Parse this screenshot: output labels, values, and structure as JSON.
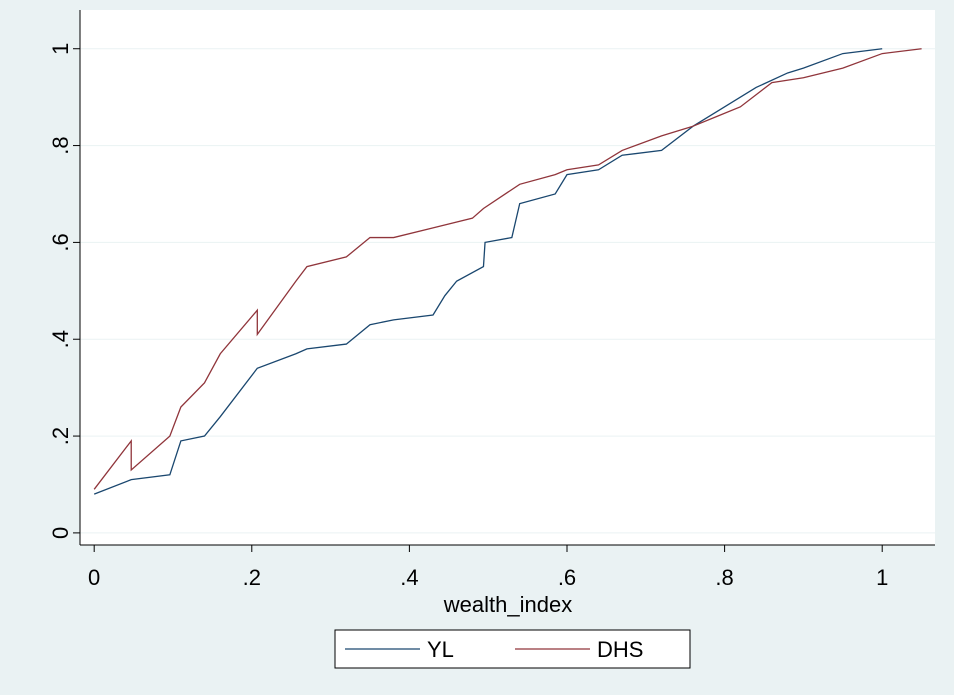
{
  "chart_data": {
    "type": "line",
    "xlabel": "wealth_index",
    "xlim": [
      -0.018,
      1.067
    ],
    "ylim": [
      -0.025,
      1.08
    ],
    "xticks": [
      0,
      {
        "value": 0.2,
        "label": ".2"
      },
      {
        "value": 0.4,
        "label": ".4"
      },
      {
        "value": 0.6,
        "label": ".6"
      },
      {
        "value": 0.8,
        "label": ".8"
      },
      1
    ],
    "yticks": [
      0,
      {
        "value": 0.2,
        "label": ".2"
      },
      {
        "value": 0.4,
        "label": ".4"
      },
      {
        "value": 0.6,
        "label": ".6"
      },
      {
        "value": 0.8,
        "label": ".8"
      },
      1
    ],
    "grid": true,
    "legend": "bottom",
    "series": [
      {
        "name": "YL",
        "color": "#1a476f",
        "x": [
          0,
          0.047,
          0.096,
          0.11,
          0.14,
          0.16,
          0.207,
          0.256,
          0.27,
          0.32,
          0.35,
          0.38,
          0.43,
          0.445,
          0.46,
          0.494,
          0.496,
          0.53,
          0.54,
          0.585,
          0.6,
          0.64,
          0.67,
          0.72,
          0.76,
          0.79,
          0.84,
          0.88,
          0.9,
          0.95,
          1
        ],
        "values": [
          0.08,
          0.11,
          0.12,
          0.19,
          0.2,
          0.24,
          0.34,
          0.37,
          0.38,
          0.39,
          0.43,
          0.44,
          0.45,
          0.49,
          0.52,
          0.55,
          0.6,
          0.61,
          0.68,
          0.7,
          0.74,
          0.75,
          0.78,
          0.79,
          0.84,
          0.87,
          0.92,
          0.95,
          0.96,
          0.99,
          1.0
        ]
      },
      {
        "name": "DHS",
        "color": "#90353b",
        "x": [
          0,
          0.047,
          0.047,
          0.096,
          0.11,
          0.14,
          0.16,
          0.207,
          0.207,
          0.256,
          0.27,
          0.32,
          0.35,
          0.38,
          0.43,
          0.48,
          0.494,
          0.54,
          0.585,
          0.6,
          0.64,
          0.67,
          0.72,
          0.76,
          0.79,
          0.82,
          0.86,
          0.9,
          0.95,
          1,
          1.05
        ],
        "values": [
          0.09,
          0.19,
          0.13,
          0.2,
          0.26,
          0.31,
          0.37,
          0.46,
          0.41,
          0.52,
          0.55,
          0.57,
          0.61,
          0.61,
          0.63,
          0.65,
          0.67,
          0.72,
          0.74,
          0.75,
          0.76,
          0.79,
          0.82,
          0.84,
          0.86,
          0.88,
          0.93,
          0.94,
          0.96,
          0.99,
          1.0
        ]
      }
    ]
  }
}
